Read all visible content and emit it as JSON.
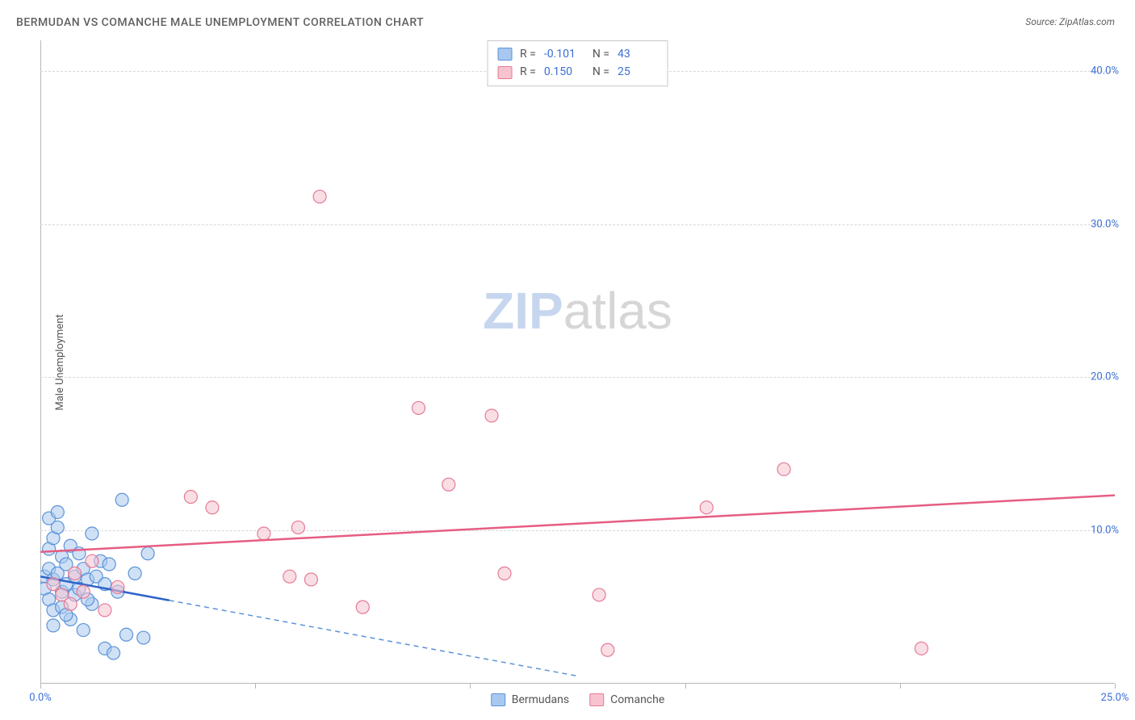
{
  "title": "BERMUDAN VS COMANCHE MALE UNEMPLOYMENT CORRELATION CHART",
  "source": "Source: ZipAtlas.com",
  "ylabel": "Male Unemployment",
  "watermark_zip": "ZIP",
  "watermark_atlas": "atlas",
  "chart": {
    "type": "scatter",
    "background_color": "#ffffff",
    "grid_color": "#d8d8d8",
    "axis_color": "#b7b7b7",
    "tick_color": "#3b6fd6",
    "label_color": "#555555",
    "title_color": "#616161",
    "xlim": [
      0,
      25
    ],
    "ylim": [
      0,
      42
    ],
    "ytick_values": [
      10,
      20,
      30,
      40
    ],
    "ytick_labels": [
      "10.0%",
      "20.0%",
      "30.0%",
      "40.0%"
    ],
    "xtick_values": [
      0,
      5,
      10,
      15,
      20,
      25
    ],
    "xtick_labels": [
      "0.0%",
      "",
      "",
      "",
      "",
      "25.0%"
    ],
    "marker_radius": 8,
    "marker_stroke_width": 1.2,
    "trend_line_width": 2.5
  },
  "series": [
    {
      "name": "Bermudans",
      "fill_color": "#a9c8ef",
      "stroke_color": "#5a93d8",
      "fill_opacity": 0.55,
      "R": "-0.101",
      "N": "43",
      "trend": {
        "x1": 0,
        "y1": 7.0,
        "x2": 12.5,
        "y2": 0.5,
        "dash_x": 3.0,
        "solid_color": "#2e64c9",
        "dash_color": "#5a93d8"
      },
      "points": [
        [
          0.1,
          7.0
        ],
        [
          0.1,
          6.2
        ],
        [
          0.2,
          7.5
        ],
        [
          0.2,
          8.8
        ],
        [
          0.2,
          5.5
        ],
        [
          0.3,
          6.8
        ],
        [
          0.3,
          9.5
        ],
        [
          0.3,
          4.8
        ],
        [
          0.4,
          7.2
        ],
        [
          0.4,
          10.2
        ],
        [
          0.5,
          6.0
        ],
        [
          0.5,
          8.3
        ],
        [
          0.5,
          5.0
        ],
        [
          0.6,
          7.8
        ],
        [
          0.6,
          6.5
        ],
        [
          0.7,
          9.0
        ],
        [
          0.7,
          4.2
        ],
        [
          0.8,
          7.0
        ],
        [
          0.8,
          5.8
        ],
        [
          0.9,
          8.5
        ],
        [
          0.9,
          6.2
        ],
        [
          1.0,
          7.5
        ],
        [
          1.0,
          3.5
        ],
        [
          1.1,
          6.8
        ],
        [
          1.2,
          9.8
        ],
        [
          1.2,
          5.2
        ],
        [
          1.3,
          7.0
        ],
        [
          1.4,
          8.0
        ],
        [
          1.5,
          6.5
        ],
        [
          1.5,
          2.3
        ],
        [
          1.6,
          7.8
        ],
        [
          1.7,
          2.0
        ],
        [
          1.8,
          6.0
        ],
        [
          1.9,
          12.0
        ],
        [
          2.0,
          3.2
        ],
        [
          2.2,
          7.2
        ],
        [
          2.4,
          3.0
        ],
        [
          2.5,
          8.5
        ],
        [
          0.2,
          10.8
        ],
        [
          0.4,
          11.2
        ],
        [
          0.3,
          3.8
        ],
        [
          0.6,
          4.5
        ],
        [
          1.1,
          5.5
        ]
      ]
    },
    {
      "name": "Comanche",
      "fill_color": "#f6c3cf",
      "stroke_color": "#e57a94",
      "fill_opacity": 0.55,
      "R": "0.150",
      "N": "25",
      "trend": {
        "x1": 0,
        "y1": 8.6,
        "x2": 25,
        "y2": 12.3,
        "solid_color": "#e65d83"
      },
      "points": [
        [
          0.3,
          6.5
        ],
        [
          0.5,
          5.8
        ],
        [
          0.8,
          7.2
        ],
        [
          1.0,
          6.0
        ],
        [
          1.2,
          8.0
        ],
        [
          1.5,
          4.8
        ],
        [
          3.5,
          12.2
        ],
        [
          4.0,
          11.5
        ],
        [
          5.2,
          9.8
        ],
        [
          5.8,
          7.0
        ],
        [
          6.3,
          6.8
        ],
        [
          6.0,
          10.2
        ],
        [
          6.5,
          31.8
        ],
        [
          7.5,
          5.0
        ],
        [
          8.8,
          18.0
        ],
        [
          9.5,
          13.0
        ],
        [
          10.5,
          17.5
        ],
        [
          10.8,
          7.2
        ],
        [
          13.0,
          5.8
        ],
        [
          13.2,
          2.2
        ],
        [
          15.5,
          11.5
        ],
        [
          17.3,
          14.0
        ],
        [
          20.5,
          2.3
        ],
        [
          0.7,
          5.2
        ],
        [
          1.8,
          6.3
        ]
      ]
    }
  ],
  "legend_top": {
    "r_label": "R =",
    "n_label": "N ="
  },
  "legend_bottom": {
    "items": [
      "Bermudans",
      "Comanche"
    ]
  }
}
